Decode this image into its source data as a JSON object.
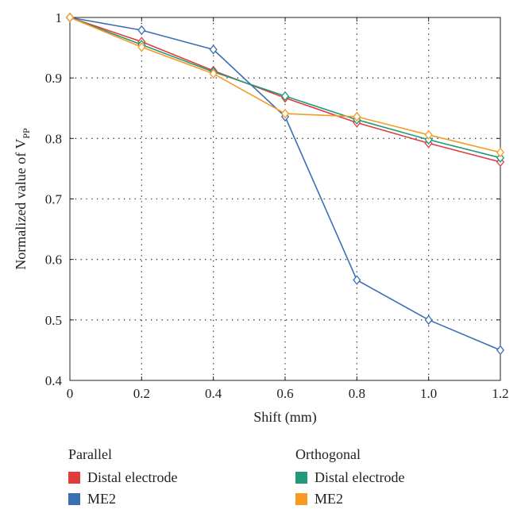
{
  "chart_data": {
    "type": "line",
    "xlabel": "Shift (mm)",
    "ylabel": "Normalized value of V",
    "ylabel_subscript": "PP",
    "x": [
      0,
      0.2,
      0.4,
      0.6,
      0.8,
      1.0,
      1.2
    ],
    "x_tick_labels": [
      "0",
      "0.2",
      "0.4",
      "0.6",
      "0.8",
      "1.0",
      "1.2"
    ],
    "xlim": [
      0,
      1.2
    ],
    "y_ticks": [
      0.4,
      0.5,
      0.6,
      0.7,
      0.8,
      0.9,
      1
    ],
    "y_tick_labels": [
      "0.4",
      "0.5",
      "0.6",
      "0.7",
      "0.8",
      "0.9",
      "1"
    ],
    "ylim": [
      0.4,
      1
    ],
    "grid": true,
    "marker": "diamond",
    "series": [
      {
        "name": "Distal electrode",
        "group": "Parallel",
        "color": "#e03c3c",
        "values": [
          1.0,
          0.96,
          0.912,
          0.867,
          0.826,
          0.792,
          0.761
        ]
      },
      {
        "name": "ME2",
        "group": "Parallel",
        "color": "#3d6eb4",
        "values": [
          1.0,
          0.979,
          0.947,
          0.836,
          0.566,
          0.5,
          0.45
        ]
      },
      {
        "name": "Distal electrode",
        "group": "Orthogonal",
        "color": "#21997a",
        "values": [
          1.0,
          0.955,
          0.91,
          0.87,
          0.831,
          0.798,
          0.768
        ]
      },
      {
        "name": "ME2",
        "group": "Orthogonal",
        "color": "#f59a23",
        "values": [
          1.0,
          0.951,
          0.907,
          0.841,
          0.836,
          0.806,
          0.777
        ]
      }
    ]
  },
  "legend": {
    "parallel": {
      "title": "Parallel",
      "items": [
        {
          "label": "Distal electrode",
          "color": "#e03c3c"
        },
        {
          "label": "ME2",
          "color": "#3d6eb4"
        }
      ]
    },
    "orthogonal": {
      "title": "Orthogonal",
      "items": [
        {
          "label": "Distal electrode",
          "color": "#21997a"
        },
        {
          "label": "ME2",
          "color": "#f59a23"
        }
      ]
    }
  }
}
